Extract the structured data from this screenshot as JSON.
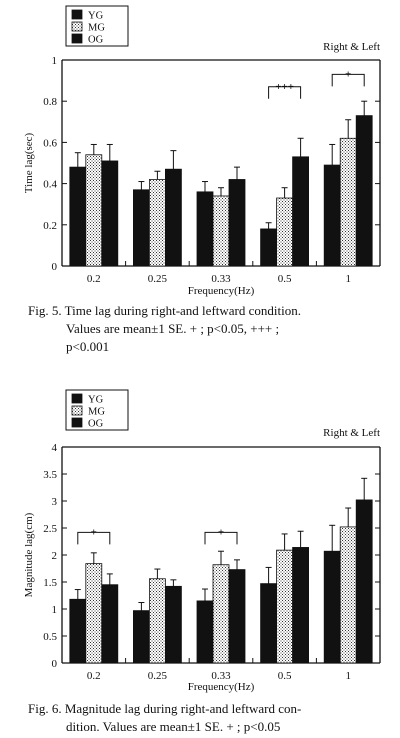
{
  "colors": {
    "YG": "#111111",
    "MG": "#ffffff",
    "OG": "#111111",
    "pattern": "#333333"
  },
  "chart_data": [
    {
      "type": "bar",
      "corner_label": "Right & Left",
      "xlabel": "Frequency(Hz)",
      "ylabel": "Time lag(sec)",
      "ylim": [
        0,
        1
      ],
      "yticks": [
        "0",
        "0.2",
        "0.4",
        "0.6",
        "0.8",
        "1"
      ],
      "categories": [
        "0.2",
        "0.25",
        "0.33",
        "0.5",
        "1"
      ],
      "legend": [
        "YG",
        "MG",
        "OG"
      ],
      "series": [
        {
          "name": "YG",
          "values": [
            0.48,
            0.37,
            0.36,
            0.18,
            0.49
          ],
          "se": [
            0.07,
            0.04,
            0.05,
            0.03,
            0.1
          ]
        },
        {
          "name": "MG",
          "values": [
            0.54,
            0.42,
            0.34,
            0.33,
            0.62
          ],
          "se": [
            0.05,
            0.04,
            0.04,
            0.05,
            0.09
          ]
        },
        {
          "name": "OG",
          "values": [
            0.51,
            0.47,
            0.42,
            0.53,
            0.73
          ],
          "se": [
            0.08,
            0.09,
            0.06,
            0.09,
            0.07
          ]
        }
      ],
      "annotations": [
        {
          "label": "+++",
          "category": 3,
          "from": "YG",
          "to": "OG",
          "at": 0.87
        },
        {
          "label": "+",
          "category": 4,
          "from": "YG",
          "to": "OG",
          "at": 0.93
        }
      ],
      "caption": {
        "line1": "Fig. 5.  Time lag during right-and leftward condition.",
        "line2": "Values are mean±1 SE.  + ; p<0.05,   +++ ;",
        "line3": "p<0.001"
      }
    },
    {
      "type": "bar",
      "corner_label": "Right & Left",
      "xlabel": "Frequency(Hz)",
      "ylabel": "Magnitude lag(cm)",
      "ylim": [
        0,
        4
      ],
      "yticks": [
        "0",
        "0.5",
        "1",
        "1.5",
        "2",
        "2.5",
        "3",
        "3.5",
        "4"
      ],
      "categories": [
        "0.2",
        "0.25",
        "0.33",
        "0.5",
        "1"
      ],
      "legend": [
        "YG",
        "MG",
        "OG"
      ],
      "series": [
        {
          "name": "YG",
          "values": [
            1.18,
            0.97,
            1.15,
            1.47,
            2.07
          ],
          "se": [
            0.18,
            0.15,
            0.22,
            0.3,
            0.48
          ]
        },
        {
          "name": "MG",
          "values": [
            1.84,
            1.56,
            1.82,
            2.09,
            2.52
          ],
          "se": [
            0.2,
            0.18,
            0.25,
            0.3,
            0.35
          ]
        },
        {
          "name": "OG",
          "values": [
            1.45,
            1.42,
            1.73,
            2.14,
            3.02
          ],
          "se": [
            0.2,
            0.12,
            0.18,
            0.3,
            0.4
          ]
        }
      ],
      "annotations": [
        {
          "label": "+",
          "category": 0,
          "from": "YG",
          "to": "OG",
          "at": 2.42
        },
        {
          "label": "+",
          "category": 2,
          "from": "YG",
          "to": "OG",
          "at": 2.42
        }
      ],
      "caption": {
        "line1": "Fig. 6.  Magnitude lag during right-and leftward con-",
        "line2": "dition. Values are mean±1 SE. + ; p<0.05"
      }
    }
  ]
}
